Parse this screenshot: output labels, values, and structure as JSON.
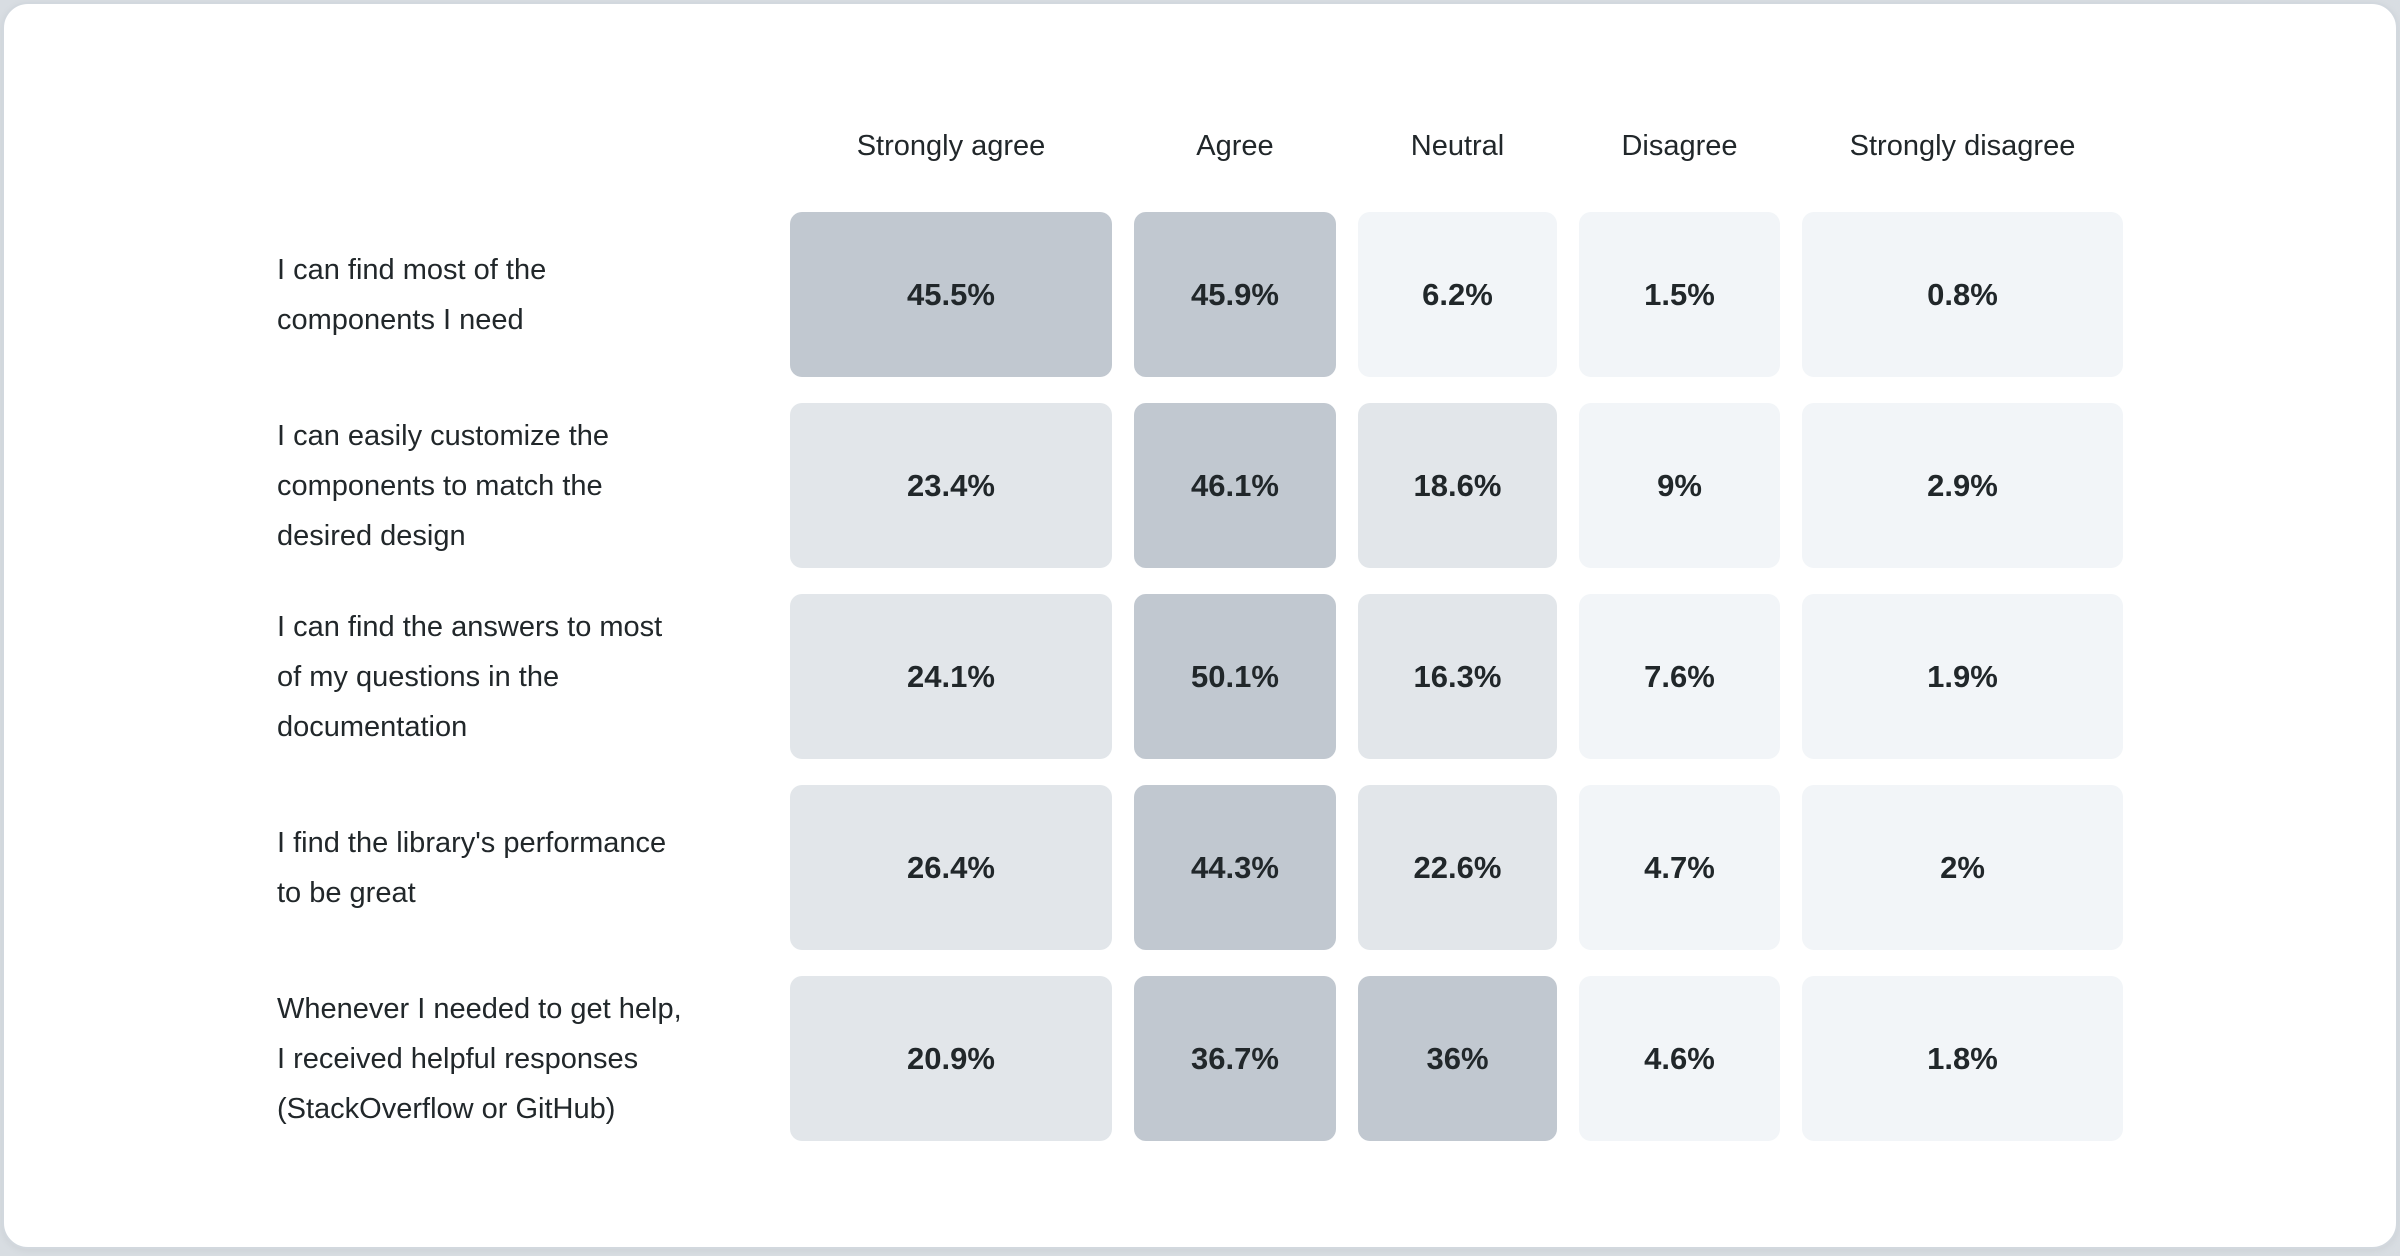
{
  "page": {
    "background_color": "#d8dde2",
    "card_background": "#ffffff",
    "card_border_color": "#d2d8de"
  },
  "chart_data": {
    "type": "heatmap",
    "title": "",
    "legend_position": "none",
    "grid": false,
    "value_unit": "%",
    "text_color": "#21272a",
    "columns": [
      "Strongly agree",
      "Agree",
      "Neutral",
      "Disagree",
      "Strongly disagree"
    ],
    "rows": [
      {
        "label": "I can find most of the components I need",
        "label_lines": "I can find most of the\ncomponents I need",
        "values": [
          45.5,
          45.9,
          6.2,
          1.5,
          0.8
        ],
        "labels": [
          "45.5%",
          "45.9%",
          "6.2%",
          "1.5%",
          "0.8%"
        ]
      },
      {
        "label": "I can easily customize the components to match the desired design",
        "label_lines": "I can easily customize the\ncomponents to match the\ndesired design",
        "values": [
          23.4,
          46.1,
          18.6,
          9,
          2.9
        ],
        "labels": [
          "23.4%",
          "46.1%",
          "18.6%",
          "9%",
          "2.9%"
        ]
      },
      {
        "label": "I can find the answers to most of my questions in the documentation",
        "label_lines": "I can find the answers to most\nof my questions in the\ndocumentation",
        "values": [
          24.1,
          50.1,
          16.3,
          7.6,
          1.9
        ],
        "labels": [
          "24.1%",
          "50.1%",
          "16.3%",
          "7.6%",
          "1.9%"
        ]
      },
      {
        "label": "I find the library's performance to be great",
        "label_lines": "I find the library's performance\nto be great",
        "values": [
          26.4,
          44.3,
          22.6,
          4.7,
          2
        ],
        "labels": [
          "26.4%",
          "44.3%",
          "22.6%",
          "4.7%",
          "2%"
        ]
      },
      {
        "label": "Whenever I needed to get help, I received helpful responses (StackOverflow or GitHub)",
        "label_lines": "Whenever I needed to get help,\nI received helpful responses\n(StackOverflow or GitHub)",
        "values": [
          20.9,
          36.7,
          36,
          4.6,
          1.8
        ],
        "labels": [
          "20.9%",
          "36.7%",
          "36%",
          "4.6%",
          "1.8%"
        ]
      }
    ],
    "color_scale": {
      "buckets": [
        {
          "min": 30,
          "color": "#c1c8d0"
        },
        {
          "min": 10,
          "color": "#e2e6ea"
        },
        {
          "min": 0,
          "color": "#f2f5f8"
        }
      ]
    }
  }
}
